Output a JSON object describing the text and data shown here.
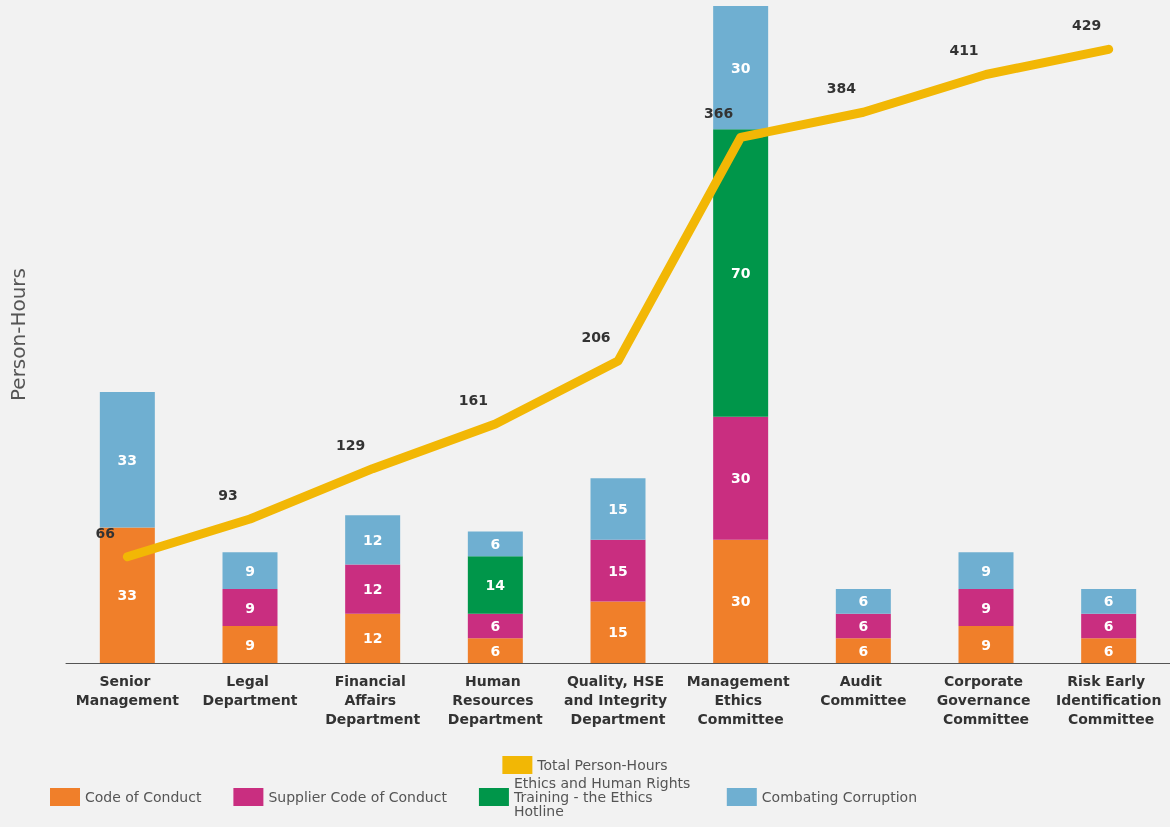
{
  "chart_data": {
    "type": "bar",
    "stacked": true,
    "ylabel": "Person-Hours",
    "categories": [
      "Senior Management",
      "Legal Department",
      "Financial Affairs Department",
      "Human Resources Department",
      "Quality, HSE and Integrity Department",
      "Management Ethics Committee",
      "Audit Committee",
      "Corporate Governance Committee",
      "Risk Early Identification Committee"
    ],
    "series": [
      {
        "name": "Code of Conduct",
        "color": "#f07f2a",
        "values": [
          33,
          9,
          12,
          6,
          15,
          30,
          6,
          9,
          6
        ]
      },
      {
        "name": "Supplier Code of Conduct",
        "color": "#c92e80",
        "values": [
          null,
          9,
          12,
          6,
          15,
          30,
          6,
          9,
          6
        ]
      },
      {
        "name": "Ethics and Human Rights Training - the Ethics Hotline",
        "color": "#00964a",
        "values": [
          null,
          null,
          null,
          14,
          null,
          70,
          null,
          null,
          null
        ]
      },
      {
        "name": "Combating Corruption",
        "color": "#6fafd1",
        "values": [
          33,
          9,
          12,
          6,
          15,
          30,
          6,
          9,
          6
        ]
      },
      {
        "name": "Total Person-Hours",
        "type": "line",
        "axis": "y2",
        "color": "#f2b705",
        "values": [
          66,
          93,
          129,
          161,
          206,
          366,
          384,
          411,
          429
        ]
      }
    ],
    "ylim": [
      0,
      160
    ],
    "y2lim": [
      -10,
      460
    ],
    "tick_labels": "x",
    "data_labels": true,
    "grid": false,
    "legend": "bottom",
    "marker": "none"
  }
}
